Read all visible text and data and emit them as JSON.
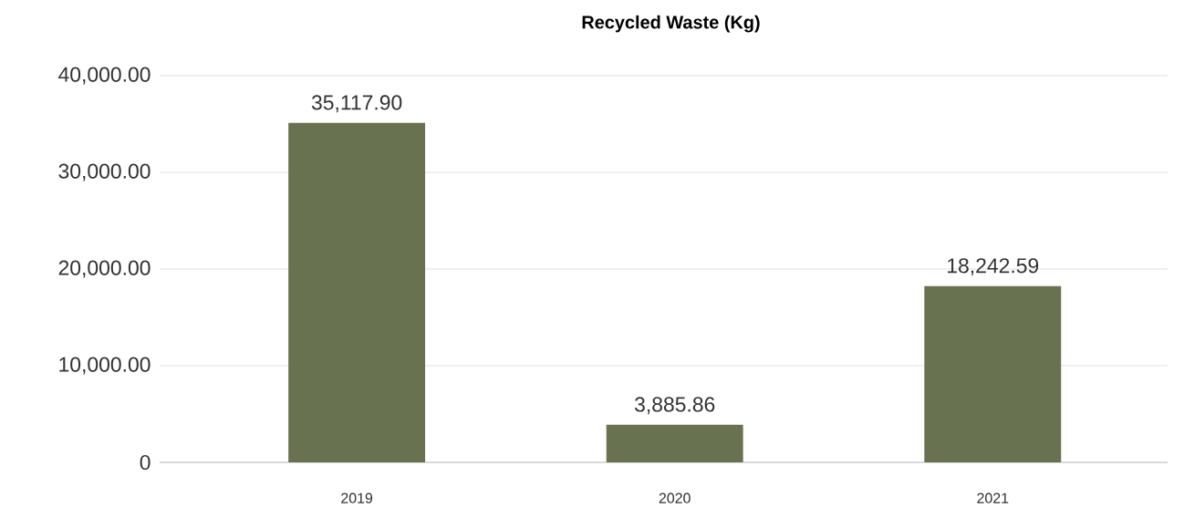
{
  "chart_data": {
    "type": "bar",
    "title": "Recycled Waste (Kg)",
    "categories": [
      "2019",
      "2020",
      "2021"
    ],
    "values": [
      35117.9,
      3885.86,
      18242.59
    ],
    "value_labels": [
      "35,117.90",
      "3,885.86",
      "18,242.59"
    ],
    "color": "#687150",
    "ylim": [
      0,
      40000
    ],
    "yticks": [
      0,
      {
        "value": 10000,
        "label": "10,000.00"
      },
      {
        "value": 20000,
        "label": "20,000.00"
      },
      {
        "value": 30000,
        "label": "30,000.00"
      },
      {
        "value": 40000,
        "label": "40,000.00"
      }
    ],
    "grid": "y"
  }
}
